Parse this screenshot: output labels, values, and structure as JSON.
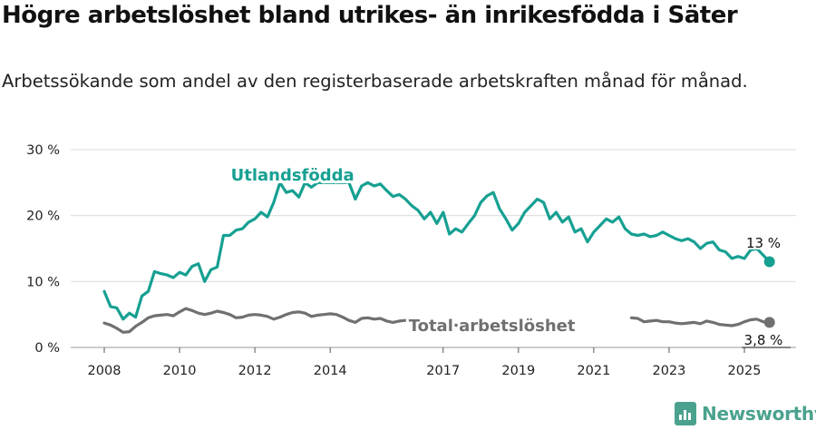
{
  "title": "Högre arbetslöshet bland utrikes- än inrikesfödda i Säter",
  "subtitle": "Arbetssökande som andel av den registerbaserade arbetskraften månad för månad.",
  "logo": {
    "text": "Newsworthy",
    "color": "#4aa28e",
    "icon": "bar-chart-icon"
  },
  "chart_data": {
    "type": "line",
    "title": "Högre arbetslöshet bland utrikes- än inrikesfödda i Säter",
    "subtitle": "Arbetssökande som andel av den registerbaserade arbetskraften månad för månad.",
    "xlabel": "",
    "ylabel": "",
    "ylim": [
      0,
      30
    ],
    "xlim": [
      "2007-06",
      "2026-06"
    ],
    "y_ticks": [
      0,
      10,
      20,
      30
    ],
    "y_tick_labels": [
      "0 %",
      "10 %",
      "20 %",
      "30 %"
    ],
    "x_ticks": [
      2008,
      2010,
      2012,
      2014,
      2017,
      2019,
      2021,
      2023,
      2025
    ],
    "grid": "horizontal",
    "series": [
      {
        "name": "Utlandsfödda",
        "color": "#16a092",
        "end_label": "13 %",
        "points": [
          [
            "2008-01",
            8.5
          ],
          [
            "2008-03",
            6.2
          ],
          [
            "2008-05",
            6.0
          ],
          [
            "2008-07",
            4.3
          ],
          [
            "2008-09",
            5.2
          ],
          [
            "2008-11",
            4.6
          ],
          [
            "2009-01",
            7.8
          ],
          [
            "2009-03",
            8.5
          ],
          [
            "2009-05",
            11.5
          ],
          [
            "2009-07",
            11.2
          ],
          [
            "2009-09",
            11.0
          ],
          [
            "2009-11",
            10.6
          ],
          [
            "2010-01",
            11.4
          ],
          [
            "2010-03",
            11.0
          ],
          [
            "2010-05",
            12.3
          ],
          [
            "2010-07",
            12.7
          ],
          [
            "2010-09",
            10.0
          ],
          [
            "2010-11",
            11.8
          ],
          [
            "2011-01",
            12.2
          ],
          [
            "2011-03",
            17.0
          ],
          [
            "2011-05",
            17.0
          ],
          [
            "2011-07",
            17.8
          ],
          [
            "2011-09",
            18.0
          ],
          [
            "2011-11",
            19.0
          ],
          [
            "2012-01",
            19.5
          ],
          [
            "2012-03",
            20.5
          ],
          [
            "2012-05",
            19.8
          ],
          [
            "2012-07",
            22.0
          ],
          [
            "2012-09",
            25.0
          ],
          [
            "2012-11",
            23.5
          ],
          [
            "2013-01",
            23.8
          ],
          [
            "2013-03",
            22.8
          ],
          [
            "2013-05",
            25.0
          ],
          [
            "2013-07",
            24.3
          ],
          [
            "2013-09",
            25.0
          ],
          [
            "2013-11",
            25.0
          ],
          [
            "2014-01",
            25.0
          ],
          [
            "2014-03",
            25.0
          ],
          [
            "2014-05",
            25.0
          ],
          [
            "2014-07",
            25.0
          ],
          [
            "2014-09",
            22.5
          ],
          [
            "2014-11",
            24.5
          ],
          [
            "2015-01",
            25.0
          ],
          [
            "2015-03",
            24.5
          ],
          [
            "2015-05",
            24.8
          ],
          [
            "2015-07",
            23.8
          ],
          [
            "2015-09",
            22.9
          ],
          [
            "2015-11",
            23.2
          ],
          [
            "2016-01",
            22.5
          ],
          [
            "2016-03",
            21.5
          ],
          [
            "2016-05",
            20.8
          ],
          [
            "2016-07",
            19.5
          ],
          [
            "2016-09",
            20.5
          ],
          [
            "2016-11",
            18.8
          ],
          [
            "2017-01",
            20.5
          ],
          [
            "2017-03",
            17.2
          ],
          [
            "2017-05",
            18.0
          ],
          [
            "2017-07",
            17.5
          ],
          [
            "2017-09",
            18.8
          ],
          [
            "2017-11",
            20.0
          ],
          [
            "2018-01",
            22.0
          ],
          [
            "2018-03",
            23.0
          ],
          [
            "2018-05",
            23.5
          ],
          [
            "2018-07",
            21.0
          ],
          [
            "2018-09",
            19.5
          ],
          [
            "2018-11",
            17.8
          ],
          [
            "2019-01",
            18.8
          ],
          [
            "2019-03",
            20.5
          ],
          [
            "2019-05",
            21.5
          ],
          [
            "2019-07",
            22.5
          ],
          [
            "2019-09",
            22.0
          ],
          [
            "2019-11",
            19.5
          ],
          [
            "2020-01",
            20.5
          ],
          [
            "2020-03",
            19.0
          ],
          [
            "2020-05",
            19.8
          ],
          [
            "2020-07",
            17.5
          ],
          [
            "2020-09",
            18.0
          ],
          [
            "2020-11",
            16.0
          ],
          [
            "2021-01",
            17.5
          ],
          [
            "2021-03",
            18.5
          ],
          [
            "2021-05",
            19.5
          ],
          [
            "2021-07",
            19.0
          ],
          [
            "2021-09",
            19.8
          ],
          [
            "2021-11",
            18.0
          ],
          [
            "2022-01",
            17.2
          ],
          [
            "2022-03",
            17.0
          ],
          [
            "2022-05",
            17.2
          ],
          [
            "2022-07",
            16.8
          ],
          [
            "2022-09",
            17.0
          ],
          [
            "2022-11",
            17.5
          ],
          [
            "2023-01",
            17.0
          ],
          [
            "2023-03",
            16.5
          ],
          [
            "2023-05",
            16.2
          ],
          [
            "2023-07",
            16.5
          ],
          [
            "2023-09",
            16.0
          ],
          [
            "2023-11",
            15.0
          ],
          [
            "2024-01",
            15.8
          ],
          [
            "2024-03",
            16.0
          ],
          [
            "2024-05",
            14.8
          ],
          [
            "2024-07",
            14.5
          ],
          [
            "2024-09",
            13.5
          ],
          [
            "2024-11",
            13.8
          ],
          [
            "2025-01",
            13.5
          ],
          [
            "2025-03",
            14.8
          ],
          [
            "2025-05",
            15.0
          ],
          [
            "2025-07",
            14.0
          ],
          [
            "2025-09",
            13.0
          ]
        ]
      },
      {
        "name": "Total arbetslöshet",
        "color": "#707070",
        "end_label": "3,8 %",
        "points": [
          [
            "2008-01",
            3.7
          ],
          [
            "2008-03",
            3.4
          ],
          [
            "2008-05",
            2.9
          ],
          [
            "2008-07",
            2.3
          ],
          [
            "2008-09",
            2.4
          ],
          [
            "2008-11",
            3.2
          ],
          [
            "2009-01",
            3.8
          ],
          [
            "2009-03",
            4.5
          ],
          [
            "2009-05",
            4.8
          ],
          [
            "2009-07",
            4.9
          ],
          [
            "2009-09",
            5.0
          ],
          [
            "2009-11",
            4.8
          ],
          [
            "2010-01",
            5.4
          ],
          [
            "2010-03",
            5.9
          ],
          [
            "2010-05",
            5.6
          ],
          [
            "2010-07",
            5.2
          ],
          [
            "2010-09",
            5.0
          ],
          [
            "2010-11",
            5.2
          ],
          [
            "2011-01",
            5.5
          ],
          [
            "2011-03",
            5.3
          ],
          [
            "2011-05",
            5.0
          ],
          [
            "2011-07",
            4.5
          ],
          [
            "2011-09",
            4.6
          ],
          [
            "2011-11",
            4.9
          ],
          [
            "2012-01",
            5.0
          ],
          [
            "2012-03",
            4.9
          ],
          [
            "2012-05",
            4.7
          ],
          [
            "2012-07",
            4.3
          ],
          [
            "2012-09",
            4.6
          ],
          [
            "2012-11",
            5.0
          ],
          [
            "2013-01",
            5.3
          ],
          [
            "2013-03",
            5.4
          ],
          [
            "2013-05",
            5.2
          ],
          [
            "2013-07",
            4.7
          ],
          [
            "2013-09",
            4.9
          ],
          [
            "2013-11",
            5.0
          ],
          [
            "2014-01",
            5.1
          ],
          [
            "2014-03",
            5.0
          ],
          [
            "2014-05",
            4.6
          ],
          [
            "2014-07",
            4.1
          ],
          [
            "2014-09",
            3.8
          ],
          [
            "2014-11",
            4.4
          ],
          [
            "2015-01",
            4.5
          ],
          [
            "2015-03",
            4.3
          ],
          [
            "2015-05",
            4.4
          ],
          [
            "2015-07",
            4.0
          ],
          [
            "2015-09",
            3.8
          ],
          [
            "2015-11",
            4.0
          ],
          [
            "2016-01",
            4.1
          ],
          [
            "2016-03",
            4.2
          ],
          [
            "2016-05",
            3.6
          ],
          [
            "2016-07",
            3.2
          ],
          [
            "2016-09",
            3.2
          ],
          [
            "2016-11",
            3.2
          ],
          [
            "2017-01",
            3.4
          ],
          [
            "2017-03",
            3.3
          ],
          [
            "2017-05",
            3.4
          ],
          [
            "2017-07",
            3.1
          ],
          [
            "2022-01",
            4.5
          ],
          [
            "2022-03",
            4.4
          ],
          [
            "2022-05",
            3.9
          ],
          [
            "2022-07",
            4.0
          ],
          [
            "2022-09",
            4.1
          ],
          [
            "2022-11",
            3.9
          ],
          [
            "2023-01",
            3.9
          ],
          [
            "2023-03",
            3.7
          ],
          [
            "2023-05",
            3.6
          ],
          [
            "2023-07",
            3.7
          ],
          [
            "2023-09",
            3.8
          ],
          [
            "2023-11",
            3.6
          ],
          [
            "2024-01",
            4.0
          ],
          [
            "2024-03",
            3.8
          ],
          [
            "2024-05",
            3.5
          ],
          [
            "2024-07",
            3.4
          ],
          [
            "2024-09",
            3.3
          ],
          [
            "2024-11",
            3.5
          ],
          [
            "2025-01",
            3.9
          ],
          [
            "2025-03",
            4.2
          ],
          [
            "2025-05",
            4.3
          ],
          [
            "2025-07",
            3.9
          ],
          [
            "2025-09",
            3.8
          ]
        ]
      }
    ]
  }
}
